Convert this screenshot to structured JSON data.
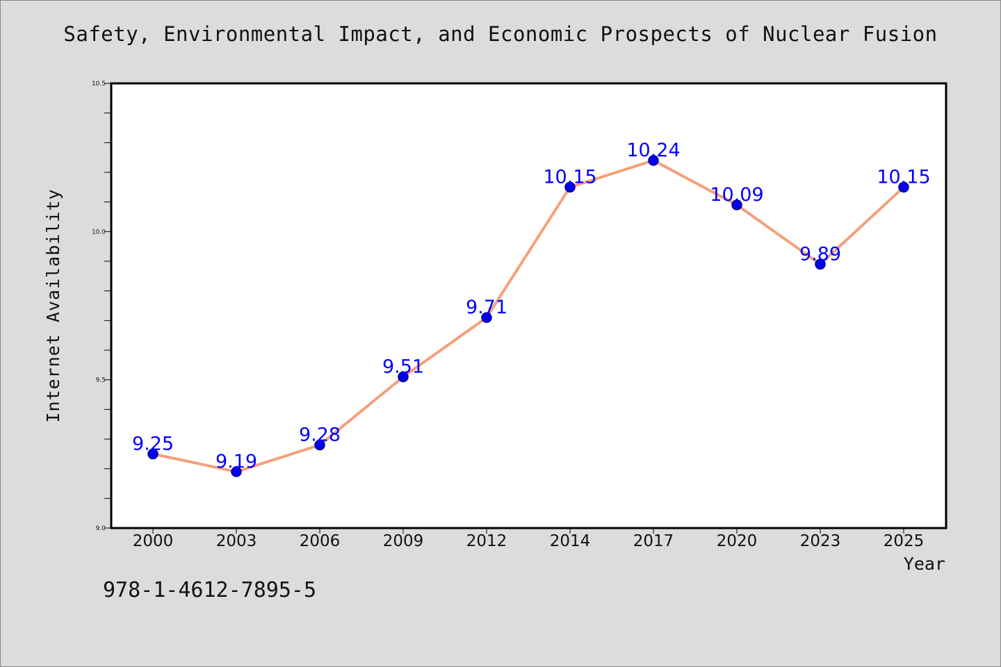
{
  "chart_data": {
    "type": "line",
    "title": "Safety, Environmental Impact, and Economic Prospects of Nuclear Fusion",
    "xlabel": "Year",
    "ylabel": "Internet Availability",
    "categories": [
      "2000",
      "2003",
      "2006",
      "2009",
      "2012",
      "2014",
      "2017",
      "2020",
      "2023",
      "2025"
    ],
    "series": [
      {
        "values": [
          9.25,
          9.19,
          9.28,
          9.51,
          9.71,
          10.15,
          10.24,
          10.09,
          9.89,
          10.15
        ],
        "data_labels": [
          "9.25",
          "9.19",
          "9.28",
          "9.51",
          "9.71",
          "10.15",
          "10.24",
          "10.09",
          "9.89",
          "10.15"
        ]
      }
    ],
    "ylim": [
      9.0,
      10.5
    ],
    "yticks": [
      9.0,
      9.5,
      10.0,
      10.5
    ],
    "ytick_labels": [
      "9.0",
      "9.5",
      "10.0",
      "10.5"
    ],
    "grid": false,
    "colors": {
      "line": "#f4a07a",
      "marker_fill": "#0000ee",
      "marker_edge": "#00008b",
      "data_label": "#0000ff",
      "plot_background": "#ffffff",
      "figure_background": "#dcdcdc"
    }
  },
  "annotation_text": "978-1-4612-7895-5"
}
